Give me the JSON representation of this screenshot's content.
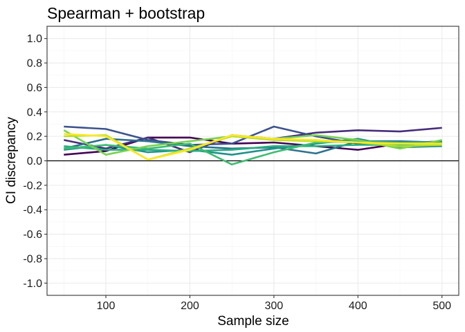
{
  "chart_data": {
    "type": "line",
    "title": "Spearman + bootstrap",
    "xlabel": "Sample size",
    "ylabel": "CI discrepancy",
    "xlim": [
      30,
      520
    ],
    "ylim": [
      -1.1,
      1.1
    ],
    "x_ticks": [
      100,
      200,
      300,
      400,
      500
    ],
    "x_tick_labels": [
      "100",
      "200",
      "300",
      "400",
      "500"
    ],
    "y_ticks": [
      -1.0,
      -0.8,
      -0.6,
      -0.4,
      -0.2,
      0.0,
      0.2,
      0.4,
      0.6,
      0.8,
      1.0
    ],
    "y_tick_labels": [
      "-1.0",
      "-0.8",
      "-0.6",
      "-0.4",
      "-0.2",
      "0.0",
      "0.2",
      "0.4",
      "0.6",
      "0.8",
      "1.0"
    ],
    "reference_line": 0,
    "grid": true,
    "legend": "none",
    "x": [
      50,
      100,
      150,
      200,
      250,
      300,
      350,
      400,
      450,
      500
    ],
    "series": [
      {
        "color": "#440154",
        "values": [
          0.05,
          0.08,
          0.19,
          0.19,
          0.14,
          0.15,
          0.12,
          0.09,
          0.14,
          0.16
        ]
      },
      {
        "color": "#472d7b",
        "values": [
          0.17,
          0.1,
          0.19,
          0.07,
          0.21,
          0.18,
          0.23,
          0.25,
          0.24,
          0.27
        ]
      },
      {
        "color": "#3b528b",
        "values": [
          0.28,
          0.26,
          0.17,
          0.13,
          0.14,
          0.28,
          0.2,
          0.14,
          0.13,
          0.16
        ]
      },
      {
        "color": "#2c728e",
        "values": [
          0.1,
          0.18,
          0.16,
          0.12,
          0.1,
          0.11,
          0.06,
          0.16,
          0.16,
          0.15
        ]
      },
      {
        "color": "#21918c",
        "values": [
          0.09,
          0.13,
          0.07,
          0.09,
          0.05,
          0.1,
          0.14,
          0.18,
          0.11,
          0.12
        ]
      },
      {
        "color": "#28ae80",
        "values": [
          0.12,
          0.09,
          0.09,
          0.08,
          0.09,
          0.12,
          0.12,
          0.13,
          0.13,
          0.14
        ]
      },
      {
        "color": "#3fbc73",
        "values": [
          0.1,
          0.13,
          0.1,
          0.14,
          -0.03,
          0.07,
          0.15,
          0.16,
          0.15,
          0.15
        ]
      },
      {
        "color": "#7ad151",
        "values": [
          0.25,
          0.05,
          0.12,
          0.16,
          0.2,
          0.18,
          0.21,
          0.17,
          0.1,
          0.17
        ]
      },
      {
        "color": "#b5de2b",
        "values": [
          0.2,
          0.21,
          0.01,
          0.1,
          0.2,
          0.17,
          0.16,
          0.15,
          0.12,
          0.13
        ]
      },
      {
        "color": "#fde725",
        "values": [
          0.22,
          0.2,
          0.01,
          0.09,
          0.21,
          0.18,
          0.17,
          0.15,
          0.14,
          0.14
        ]
      }
    ]
  }
}
